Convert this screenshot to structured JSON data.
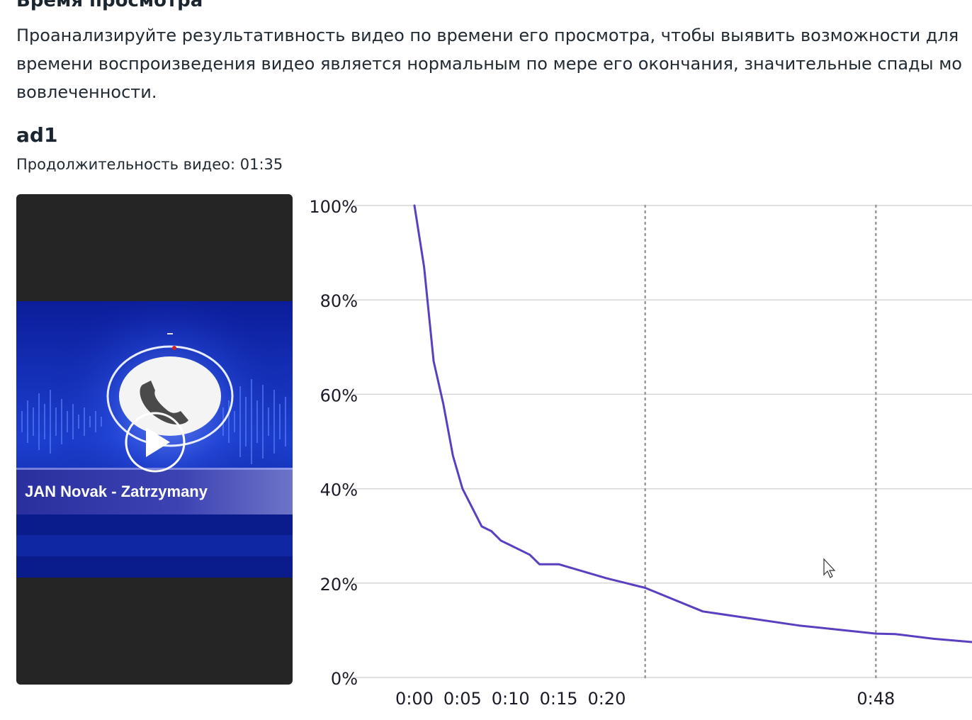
{
  "section": {
    "title": "Время просмотра",
    "description_lines": [
      "Проанализируйте результативность видео по времени его просмотра, чтобы выявить возможности для",
      "времени воспроизведения видео является нормальным по мере его окончания, значительные спады мо",
      "вовлеченности."
    ]
  },
  "video": {
    "name": "ad1",
    "duration": "Продолжительность видео: 01:35",
    "thumbnail_caption": "JAN Novak - Zatrzymany"
  },
  "colors": {
    "line": "#5a3fc0",
    "grid": "#d6d6d6",
    "marker": "#9a9a9a",
    "video_background": "#252525",
    "thumbnail_blue": "#0a1b8c"
  },
  "chart_data": {
    "type": "line",
    "title": "",
    "xlabel": "",
    "ylabel": "",
    "y_unit": "%",
    "ylim": [
      0,
      100
    ],
    "y_ticks": [
      0,
      20,
      40,
      60,
      80,
      100
    ],
    "y_tick_labels": [
      "0%",
      "20%",
      "40%",
      "60%",
      "80%",
      "100%"
    ],
    "x_tick_seconds": [
      0,
      5,
      10,
      15,
      20,
      48
    ],
    "x_tick_labels": [
      "0:00",
      "0:05",
      "0:10",
      "0:15",
      "0:20",
      "0:48"
    ],
    "x_visible_range": [
      0,
      58
    ],
    "grid": "horizontal",
    "reference_lines_seconds": [
      24,
      48
    ],
    "series": [
      {
        "points": [
          [
            0,
            100
          ],
          [
            1,
            87
          ],
          [
            2,
            67
          ],
          [
            3,
            58
          ],
          [
            4,
            47
          ],
          [
            5,
            40
          ],
          [
            6,
            36
          ],
          [
            7,
            32
          ],
          [
            8,
            31
          ],
          [
            9,
            29
          ],
          [
            10,
            28
          ],
          [
            11,
            27
          ],
          [
            12,
            26
          ],
          [
            13,
            24
          ],
          [
            14,
            24
          ],
          [
            15,
            24
          ],
          [
            20,
            21
          ],
          [
            24,
            19
          ],
          [
            30,
            14
          ],
          [
            40,
            11
          ],
          [
            48,
            9.3
          ],
          [
            50,
            9.2
          ],
          [
            54,
            8.2
          ],
          [
            58,
            7.5
          ]
        ]
      }
    ]
  }
}
